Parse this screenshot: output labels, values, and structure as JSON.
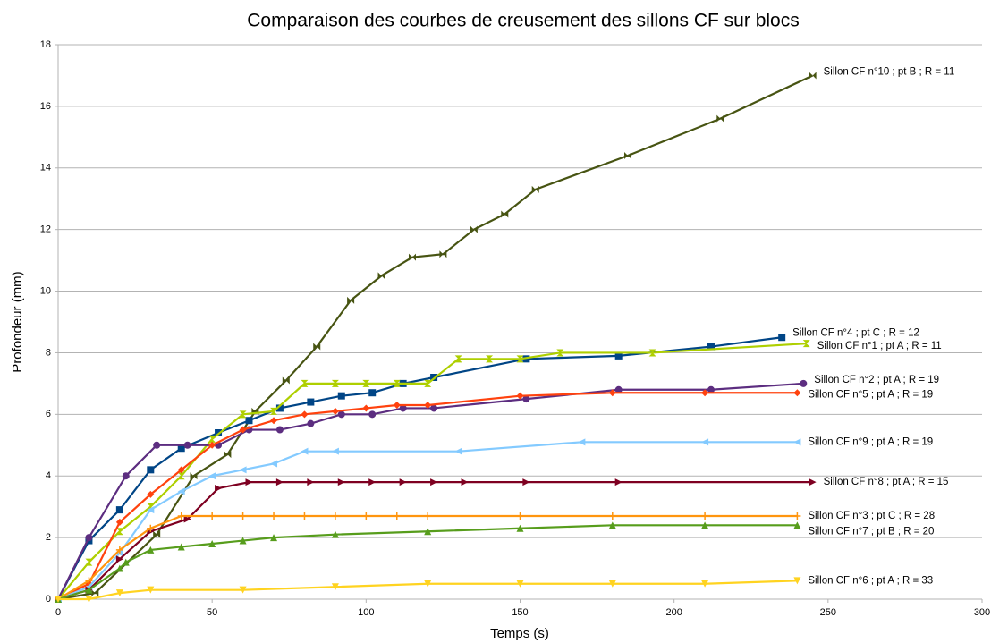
{
  "chart_data": {
    "type": "line",
    "title": "Comparaison des courbes de creusement des sillons CF sur blocs",
    "x_label": "Temps (s)",
    "y_label": "Profondeur (mm)",
    "xlim": [
      0,
      300
    ],
    "xticks": [
      0,
      50,
      100,
      150,
      200,
      250,
      300
    ],
    "ylim": [
      0,
      18
    ],
    "yticks": [
      0,
      2,
      4,
      6,
      8,
      10,
      12,
      14,
      16,
      18
    ],
    "grid": true,
    "series": [
      {
        "name": "Sillon CF n°10 ; pt B ; R = 11",
        "color": "#475412",
        "marker": "bowtie",
        "x": [
          0,
          12,
          32,
          44,
          55,
          64,
          74,
          84,
          95,
          105,
          115,
          125,
          135,
          145,
          155,
          185,
          215,
          245
        ],
        "values": [
          0,
          0.2,
          2.1,
          4,
          4.7,
          6.1,
          7.1,
          8.2,
          9.7,
          10.5,
          11.1,
          11.2,
          12,
          12.5,
          13.3,
          14.4,
          15.6,
          17
        ]
      },
      {
        "name": "Sillon CF n°4 ; pt C ; R = 12",
        "color": "#004586",
        "marker": "square",
        "x": [
          0,
          10,
          20,
          30,
          40,
          52,
          62,
          72,
          82,
          92,
          102,
          112,
          122,
          152,
          182,
          212,
          235
        ],
        "values": [
          0,
          1.9,
          2.9,
          4.2,
          4.9,
          5.4,
          5.8,
          6.2,
          6.4,
          6.6,
          6.7,
          7,
          7.2,
          7.8,
          7.9,
          8.2,
          8.5
        ]
      },
      {
        "name": "Sillon CF n°1 ; pt A ; R = 11",
        "color": "#aecf00",
        "marker": "hourglass",
        "x": [
          0,
          10,
          20,
          30,
          40,
          50,
          60,
          70,
          80,
          90,
          100,
          110,
          120,
          130,
          140,
          150,
          163,
          193,
          243
        ],
        "values": [
          0,
          1.2,
          2.2,
          3,
          4,
          5.2,
          6,
          6.1,
          7,
          7,
          7,
          7,
          7,
          7.8,
          7.8,
          7.8,
          8,
          8,
          8.3
        ]
      },
      {
        "name": "Sillon CF n°2 ; pt A ; R = 19",
        "color": "#5c2d80",
        "marker": "circle",
        "x": [
          0,
          10,
          22,
          32,
          42,
          52,
          62,
          72,
          82,
          92,
          102,
          112,
          122,
          152,
          182,
          212,
          242
        ],
        "values": [
          0,
          2,
          4,
          5,
          5,
          5,
          5.5,
          5.5,
          5.7,
          6,
          6,
          6.2,
          6.2,
          6.5,
          6.8,
          6.8,
          7
        ]
      },
      {
        "name": "Sillon CF n°5 ; pt A ; R = 19",
        "color": "#ff420e",
        "marker": "diamond",
        "x": [
          0,
          10,
          20,
          30,
          40,
          50,
          60,
          70,
          80,
          90,
          100,
          110,
          120,
          150,
          180,
          210,
          240
        ],
        "values": [
          0,
          0.5,
          2.5,
          3.4,
          4.2,
          5,
          5.5,
          5.8,
          6,
          6.1,
          6.2,
          6.3,
          6.3,
          6.6,
          6.7,
          6.7,
          6.7
        ]
      },
      {
        "name": "Sillon CF n°9 ; pt A ; R = 19",
        "color": "#83caff",
        "marker": "left",
        "x": [
          0,
          10,
          20,
          30,
          40,
          50,
          60,
          70,
          80,
          90,
          130,
          170,
          210,
          240
        ],
        "values": [
          0,
          0.4,
          1.5,
          2.9,
          3.5,
          4,
          4.2,
          4.4,
          4.8,
          4.8,
          4.8,
          5.1,
          5.1,
          5.1
        ]
      },
      {
        "name": "Sillon CF n°8 ; pt A ; R = 15",
        "color": "#7e0021",
        "marker": "right",
        "x": [
          0,
          10,
          20,
          30,
          42,
          52,
          62,
          72,
          82,
          92,
          102,
          112,
          122,
          132,
          152,
          182,
          245
        ],
        "values": [
          0,
          0.3,
          1.3,
          2.2,
          2.6,
          3.6,
          3.8,
          3.8,
          3.8,
          3.8,
          3.8,
          3.8,
          3.8,
          3.8,
          3.8,
          3.8,
          3.8
        ]
      },
      {
        "name": "Sillon CF n°3 ; pt C ; R = 28",
        "color": "#ff950e",
        "marker": "plus",
        "x": [
          0,
          10,
          20,
          30,
          40,
          50,
          60,
          70,
          80,
          90,
          100,
          110,
          120,
          150,
          180,
          210,
          240
        ],
        "values": [
          0,
          0.6,
          1.6,
          2.3,
          2.7,
          2.7,
          2.7,
          2.7,
          2.7,
          2.7,
          2.7,
          2.7,
          2.7,
          2.7,
          2.7,
          2.7,
          2.7
        ]
      },
      {
        "name": "Sillon CF n°7 ; pt B ; R = 20",
        "color": "#579d1c",
        "marker": "up",
        "x": [
          0,
          10,
          20,
          22,
          30,
          40,
          50,
          60,
          70,
          90,
          120,
          150,
          180,
          210,
          240
        ],
        "values": [
          0,
          0.3,
          1,
          1.2,
          1.6,
          1.7,
          1.8,
          1.9,
          2,
          2.1,
          2.2,
          2.3,
          2.4,
          2.4,
          2.4
        ]
      },
      {
        "name": "Sillon CF n°6 ; pt A ; R = 33",
        "color": "#ffd320",
        "marker": "down",
        "x": [
          0,
          10,
          20,
          30,
          60,
          90,
          120,
          150,
          180,
          210,
          240
        ],
        "values": [
          0,
          0,
          0.2,
          0.3,
          0.3,
          0.4,
          0.5,
          0.5,
          0.5,
          0.5,
          0.6
        ]
      }
    ]
  }
}
